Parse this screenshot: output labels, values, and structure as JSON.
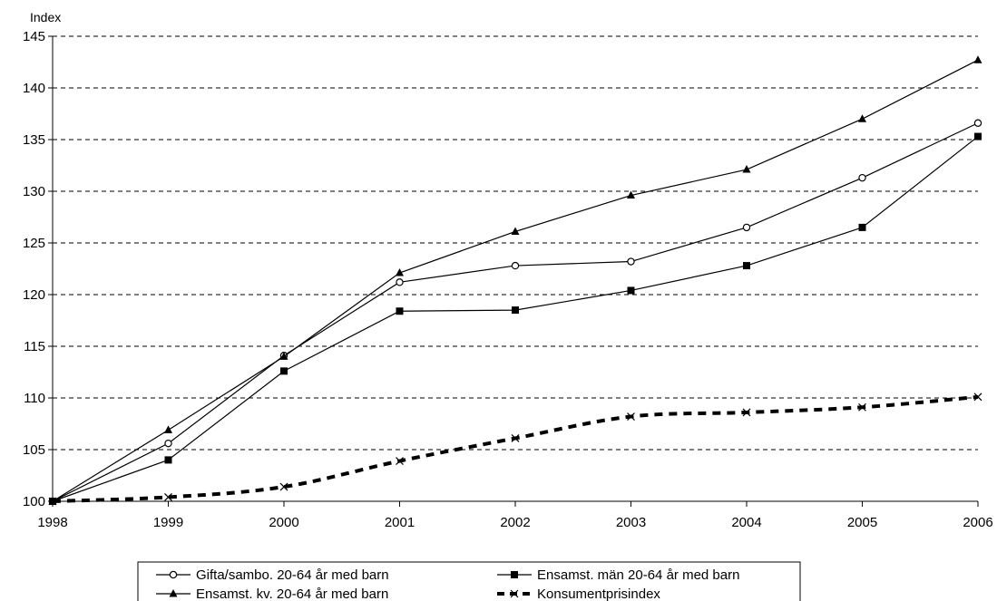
{
  "chart_data": {
    "type": "line",
    "x": [
      "1998",
      "1999",
      "2000",
      "2001",
      "2002",
      "2003",
      "2004",
      "2005",
      "2006"
    ],
    "ylabel": "Index",
    "ylim": [
      100,
      145
    ],
    "yticks": [
      "100",
      "105",
      "110",
      "115",
      "120",
      "125",
      "130",
      "135",
      "140",
      "145"
    ],
    "grid": "horizontal dashed",
    "legend_position": "bottom",
    "series": [
      {
        "name": "Gifta/sambo. 20-64 år med barn",
        "marker": "circle-open",
        "style": "solid",
        "color": "#000000",
        "values": [
          100,
          105.6,
          114.1,
          121.2,
          122.8,
          123.2,
          126.5,
          131.3,
          136.6
        ]
      },
      {
        "name": "Ensamst. män 20-64 år med barn",
        "marker": "square",
        "style": "solid",
        "color": "#000000",
        "values": [
          100,
          104.0,
          112.6,
          118.4,
          118.5,
          120.4,
          122.8,
          126.5,
          135.3
        ]
      },
      {
        "name": "Ensamst. kv. 20-64 år med barn",
        "marker": "triangle",
        "style": "solid",
        "color": "#000000",
        "values": [
          100,
          106.9,
          114.0,
          122.1,
          126.1,
          129.6,
          132.1,
          137.0,
          142.7
        ]
      },
      {
        "name": "Konsumentprisindex",
        "marker": "x",
        "style": "dashed-thick",
        "color": "#000000",
        "values": [
          100,
          100.4,
          101.4,
          103.9,
          106.1,
          108.2,
          108.6,
          109.1,
          110.1
        ]
      }
    ]
  }
}
